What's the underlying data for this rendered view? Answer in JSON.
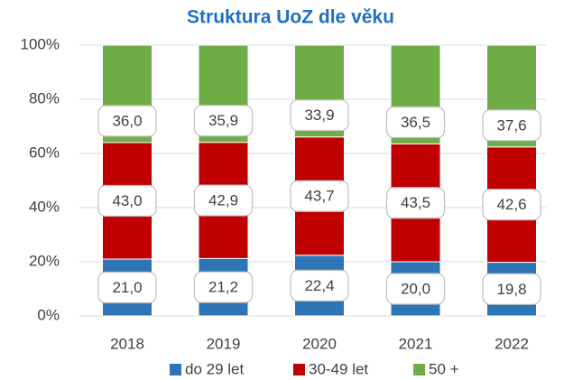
{
  "chart_data": {
    "type": "stacked_bar",
    "title": "Struktura UoZ dle věku",
    "categories": [
      "2018",
      "2019",
      "2020",
      "2021",
      "2022"
    ],
    "series": [
      {
        "name": "do 29 let",
        "color": "#2e75b6",
        "values": [
          21.0,
          21.2,
          22.4,
          20.0,
          19.8
        ],
        "value_labels": [
          "21,0",
          "21,2",
          "22,4",
          "20,0",
          "19,8"
        ]
      },
      {
        "name": "30-49 let",
        "color": "#c00000",
        "values": [
          43.0,
          42.9,
          43.7,
          43.5,
          42.6
        ],
        "value_labels": [
          "43,0",
          "42,9",
          "43,7",
          "43,5",
          "42,6"
        ]
      },
      {
        "name": "50 +",
        "color": "#70ad47",
        "values": [
          36.0,
          35.9,
          33.9,
          36.5,
          37.6
        ],
        "value_labels": [
          "36,0",
          "35,9",
          "33,9",
          "36,5",
          "37,6"
        ]
      }
    ],
    "ylim": [
      0,
      100
    ],
    "yticks": [
      {
        "value": 0,
        "label": "0%"
      },
      {
        "value": 20,
        "label": "20%"
      },
      {
        "value": 40,
        "label": "40%"
      },
      {
        "value": 60,
        "label": "60%"
      },
      {
        "value": 80,
        "label": "80%"
      },
      {
        "value": 100,
        "label": "100%"
      }
    ],
    "grid": true,
    "legend": "bottom"
  }
}
